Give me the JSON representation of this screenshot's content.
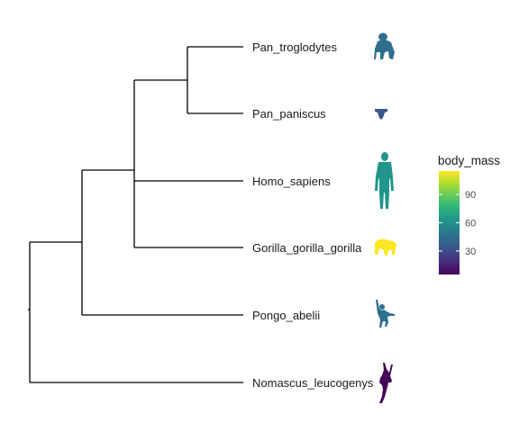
{
  "tree": {
    "tips": [
      {
        "name": "Pan_troglodytes",
        "body_mass": 45,
        "icon": "chimpanzee-silhouette-icon"
      },
      {
        "name": "Pan_paniscus",
        "body_mass": 35,
        "icon": "bonobo-silhouette-icon"
      },
      {
        "name": "Homo_sapiens",
        "body_mass": 62,
        "icon": "human-silhouette-icon"
      },
      {
        "name": "Gorilla_gorilla_gorilla",
        "body_mass": 115,
        "icon": "gorilla-silhouette-icon"
      },
      {
        "name": "Pongo_abelii",
        "body_mass": 45,
        "icon": "orangutan-silhouette-icon"
      },
      {
        "name": "Nomascus_leucogenys",
        "body_mass": 6,
        "icon": "gibbon-silhouette-icon"
      }
    ]
  },
  "legend": {
    "title": "body_mass",
    "min": 5,
    "max": 115,
    "ticks": [
      "30",
      "60",
      "90"
    ],
    "tick_values": [
      30,
      60,
      90
    ],
    "colormap": "viridis"
  },
  "colors": {
    "branch": "#000000",
    "viridis": [
      "#440154",
      "#482878",
      "#3E4A89",
      "#31688E",
      "#26828E",
      "#1F9E89",
      "#35B779",
      "#6DCD59",
      "#B4DE2C",
      "#FDE725"
    ]
  }
}
